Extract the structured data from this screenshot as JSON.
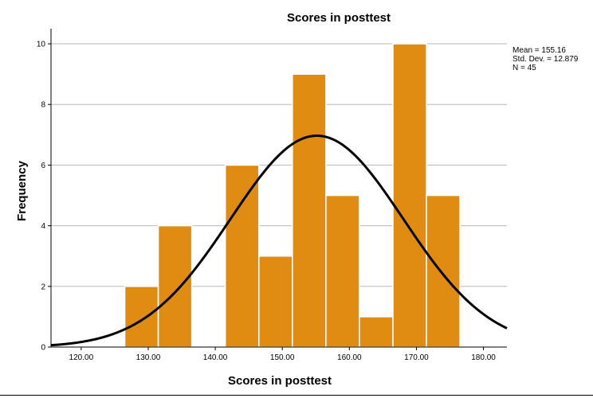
{
  "chart_data": {
    "type": "bar",
    "title": "Scores in posttest",
    "xlabel": "Scores in posttest",
    "ylabel": "Frequency",
    "xlim": [
      115.5,
      183.5
    ],
    "ylim": [
      0,
      10.5
    ],
    "x_ticks": [
      120,
      130,
      140,
      150,
      160,
      170,
      180
    ],
    "x_tick_labels": [
      "120.00",
      "130.00",
      "140.00",
      "150.00",
      "160.00",
      "170.00",
      "180.00"
    ],
    "y_ticks": [
      0,
      2,
      4,
      6,
      8,
      10
    ],
    "y_tick_labels": [
      "0",
      "2",
      "4",
      "6",
      "8",
      "10"
    ],
    "grid": "horizontal",
    "bins": [
      {
        "start": 126.5,
        "end": 131.5,
        "count": 2
      },
      {
        "start": 131.5,
        "end": 136.5,
        "count": 4
      },
      {
        "start": 136.5,
        "end": 141.5,
        "count": 0
      },
      {
        "start": 141.5,
        "end": 146.5,
        "count": 6
      },
      {
        "start": 146.5,
        "end": 151.5,
        "count": 3
      },
      {
        "start": 151.5,
        "end": 156.5,
        "count": 9
      },
      {
        "start": 156.5,
        "end": 161.5,
        "count": 5
      },
      {
        "start": 161.5,
        "end": 166.5,
        "count": 1
      },
      {
        "start": 166.5,
        "end": 171.5,
        "count": 10
      },
      {
        "start": 171.5,
        "end": 176.5,
        "count": 5
      }
    ],
    "bar_color": "#E08C12",
    "bar_edge_color": "#ffffff",
    "curve_color": "#000000",
    "normal_curve": {
      "mean": 155.16,
      "std_dev": 12.879,
      "n": 45,
      "bin_width": 5
    },
    "stats_box": {
      "mean": "Mean = 155.16",
      "std_dev": "Std. Dev. = 12.879",
      "n": "N = 45"
    }
  }
}
